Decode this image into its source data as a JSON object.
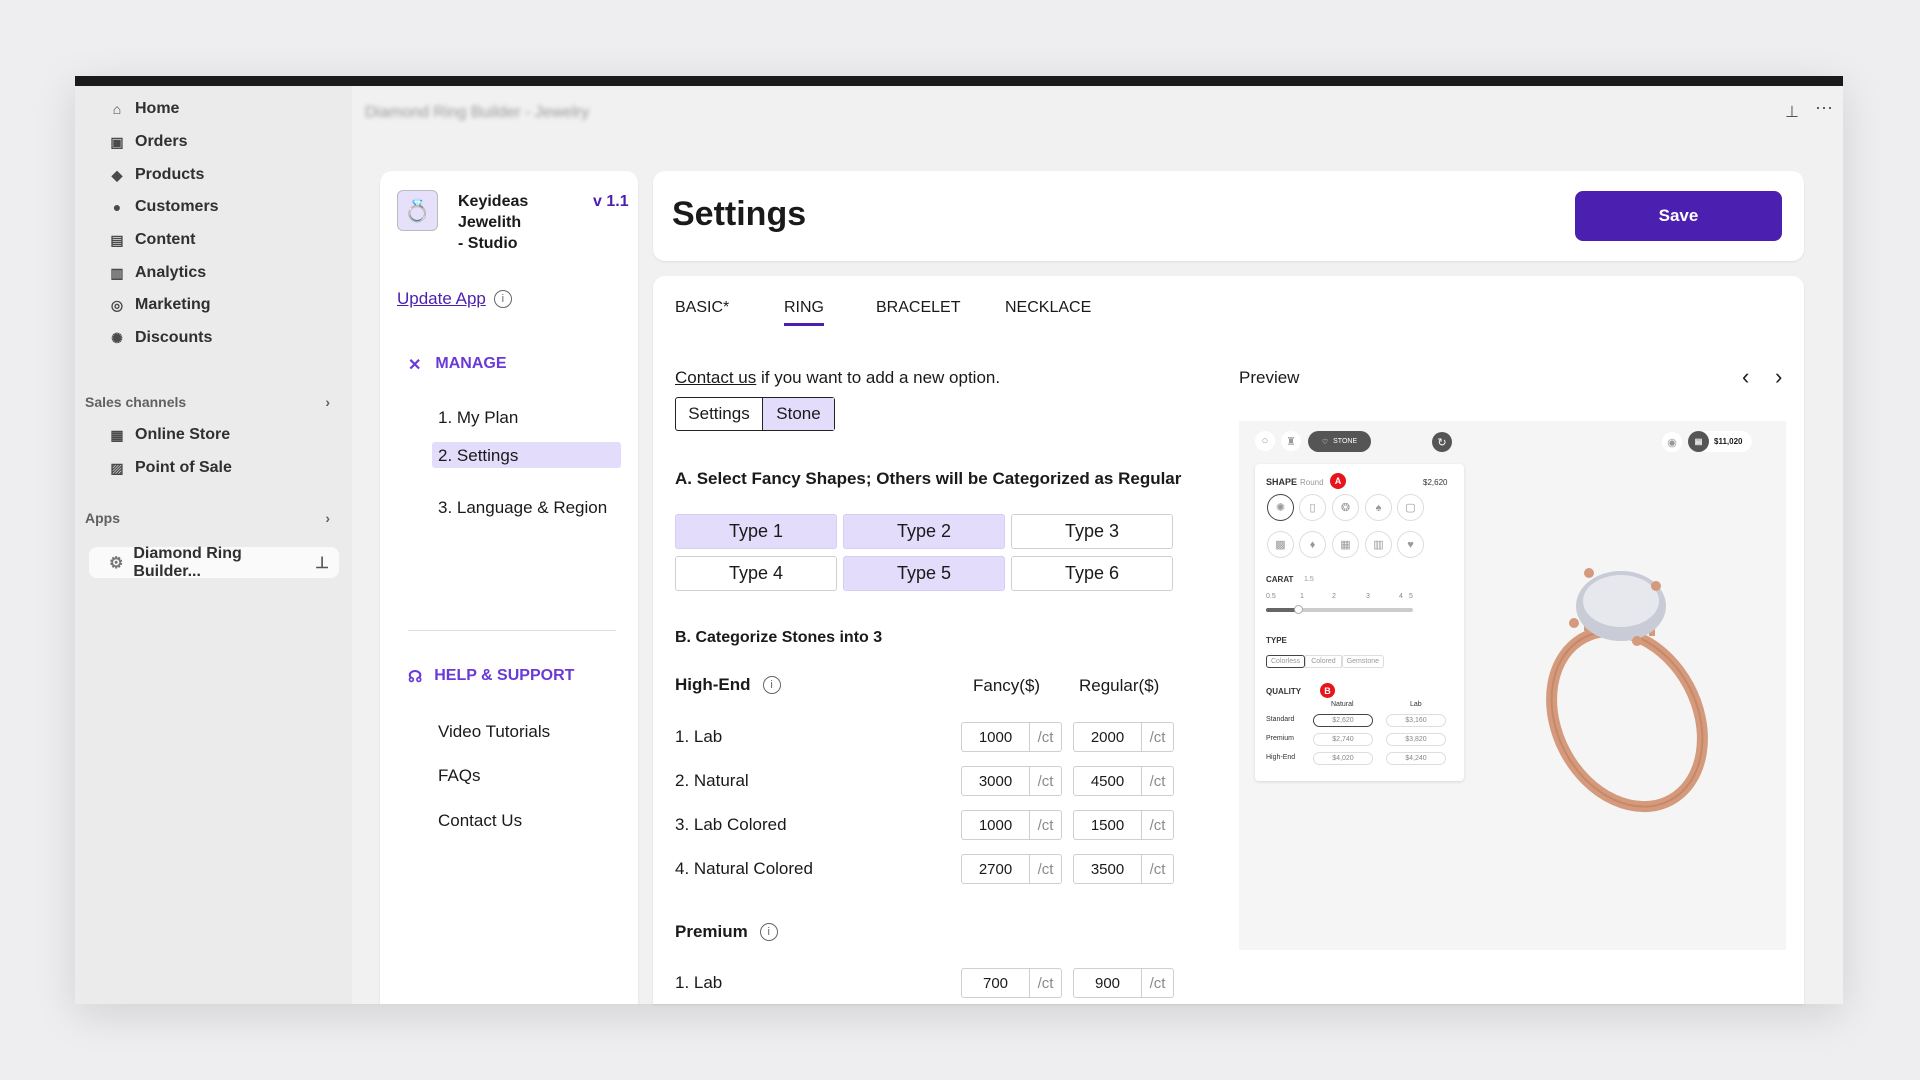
{
  "sidebar": {
    "items": [
      {
        "label": "Home",
        "icon": "home-icon"
      },
      {
        "label": "Orders",
        "icon": "orders-icon"
      },
      {
        "label": "Products",
        "icon": "tag-icon"
      },
      {
        "label": "Customers",
        "icon": "person-icon"
      },
      {
        "label": "Content",
        "icon": "content-icon"
      },
      {
        "label": "Analytics",
        "icon": "bar-chart-icon"
      },
      {
        "label": "Marketing",
        "icon": "target-icon"
      },
      {
        "label": "Discounts",
        "icon": "discount-icon"
      }
    ],
    "sales_channels": "Sales channels",
    "channels": [
      "Online Store",
      "Point of Sale"
    ],
    "apps": "Apps",
    "app_item": "Diamond Ring Builder..."
  },
  "header": {
    "title": "Diamond Ring Builder - Jewelry"
  },
  "app": {
    "name_lines": [
      "Keyideas",
      "Jewelith",
      "- Studio"
    ],
    "version": "v 1.1",
    "update": "Update App",
    "manage": "MANAGE",
    "manage_items": [
      "1. My Plan",
      "2. Settings",
      "3. Language & Region"
    ],
    "help": "HELP & SUPPORT",
    "help_items": [
      "Video Tutorials",
      "FAQs",
      "Contact Us"
    ]
  },
  "page": {
    "title": "Settings",
    "save": "Save"
  },
  "tabs": [
    "BASIC*",
    "RING",
    "BRACELET",
    "NECKLACE"
  ],
  "contact": {
    "link": "Contact us",
    "rest": " if you want to add a new option."
  },
  "segment": [
    "Settings",
    "Stone"
  ],
  "section_a": "A. Select Fancy Shapes; Others will be Categorized as Regular",
  "types": [
    {
      "label": "Type 1",
      "selected": true
    },
    {
      "label": "Type 2",
      "selected": true
    },
    {
      "label": "Type 3",
      "selected": false
    },
    {
      "label": "Type 4",
      "selected": false
    },
    {
      "label": "Type 5",
      "selected": true
    },
    {
      "label": "Type 6",
      "selected": false
    }
  ],
  "section_b": "B. Categorize Stones into 3",
  "high_end": {
    "title": "High-End",
    "fancy_header": "Fancy($)",
    "regular_header": "Regular($)",
    "unit": "/ct",
    "rows": [
      {
        "label": "1. Lab",
        "fancy": "1000",
        "regular": "2000"
      },
      {
        "label": "2. Natural",
        "fancy": "3000",
        "regular": "4500"
      },
      {
        "label": "3. Lab Colored",
        "fancy": "1000",
        "regular": "1500"
      },
      {
        "label": "4. Natural Colored",
        "fancy": "2700",
        "regular": "3500"
      }
    ]
  },
  "premium": {
    "title": "Premium",
    "rows": [
      {
        "label": "1. Lab",
        "fancy": "700",
        "regular": "900"
      }
    ]
  },
  "preview": {
    "label": "Preview",
    "stone_btn": "STONE",
    "total": "$11,020",
    "shape": "SHAPE",
    "shape_value": "Round",
    "shape_price": "$2,620",
    "badge_a": "A",
    "badge_b": "B",
    "carat": "CARAT",
    "carat_value": "1.5",
    "carat_ticks": [
      "0.5",
      "1",
      "2",
      "3",
      "4",
      "5"
    ],
    "carat_fraction": 0.22,
    "type": "TYPE",
    "type_options": [
      "Colorless",
      "Colored",
      "Gemstone"
    ],
    "quality": "QUALITY",
    "cols": [
      "Natural",
      "Lab"
    ],
    "quality_rows": [
      {
        "label": "Standard",
        "natural": "$2,620",
        "lab": "$3,160"
      },
      {
        "label": "Premium",
        "natural": "$2,740",
        "lab": "$3,820"
      },
      {
        "label": "High-End",
        "natural": "$4,020",
        "lab": "$4,240"
      }
    ]
  },
  "colors": {
    "accent": "#4b1fb0",
    "selected": "#e3dcfb",
    "badge": "#e8141c",
    "ring": "#d59a7c"
  }
}
